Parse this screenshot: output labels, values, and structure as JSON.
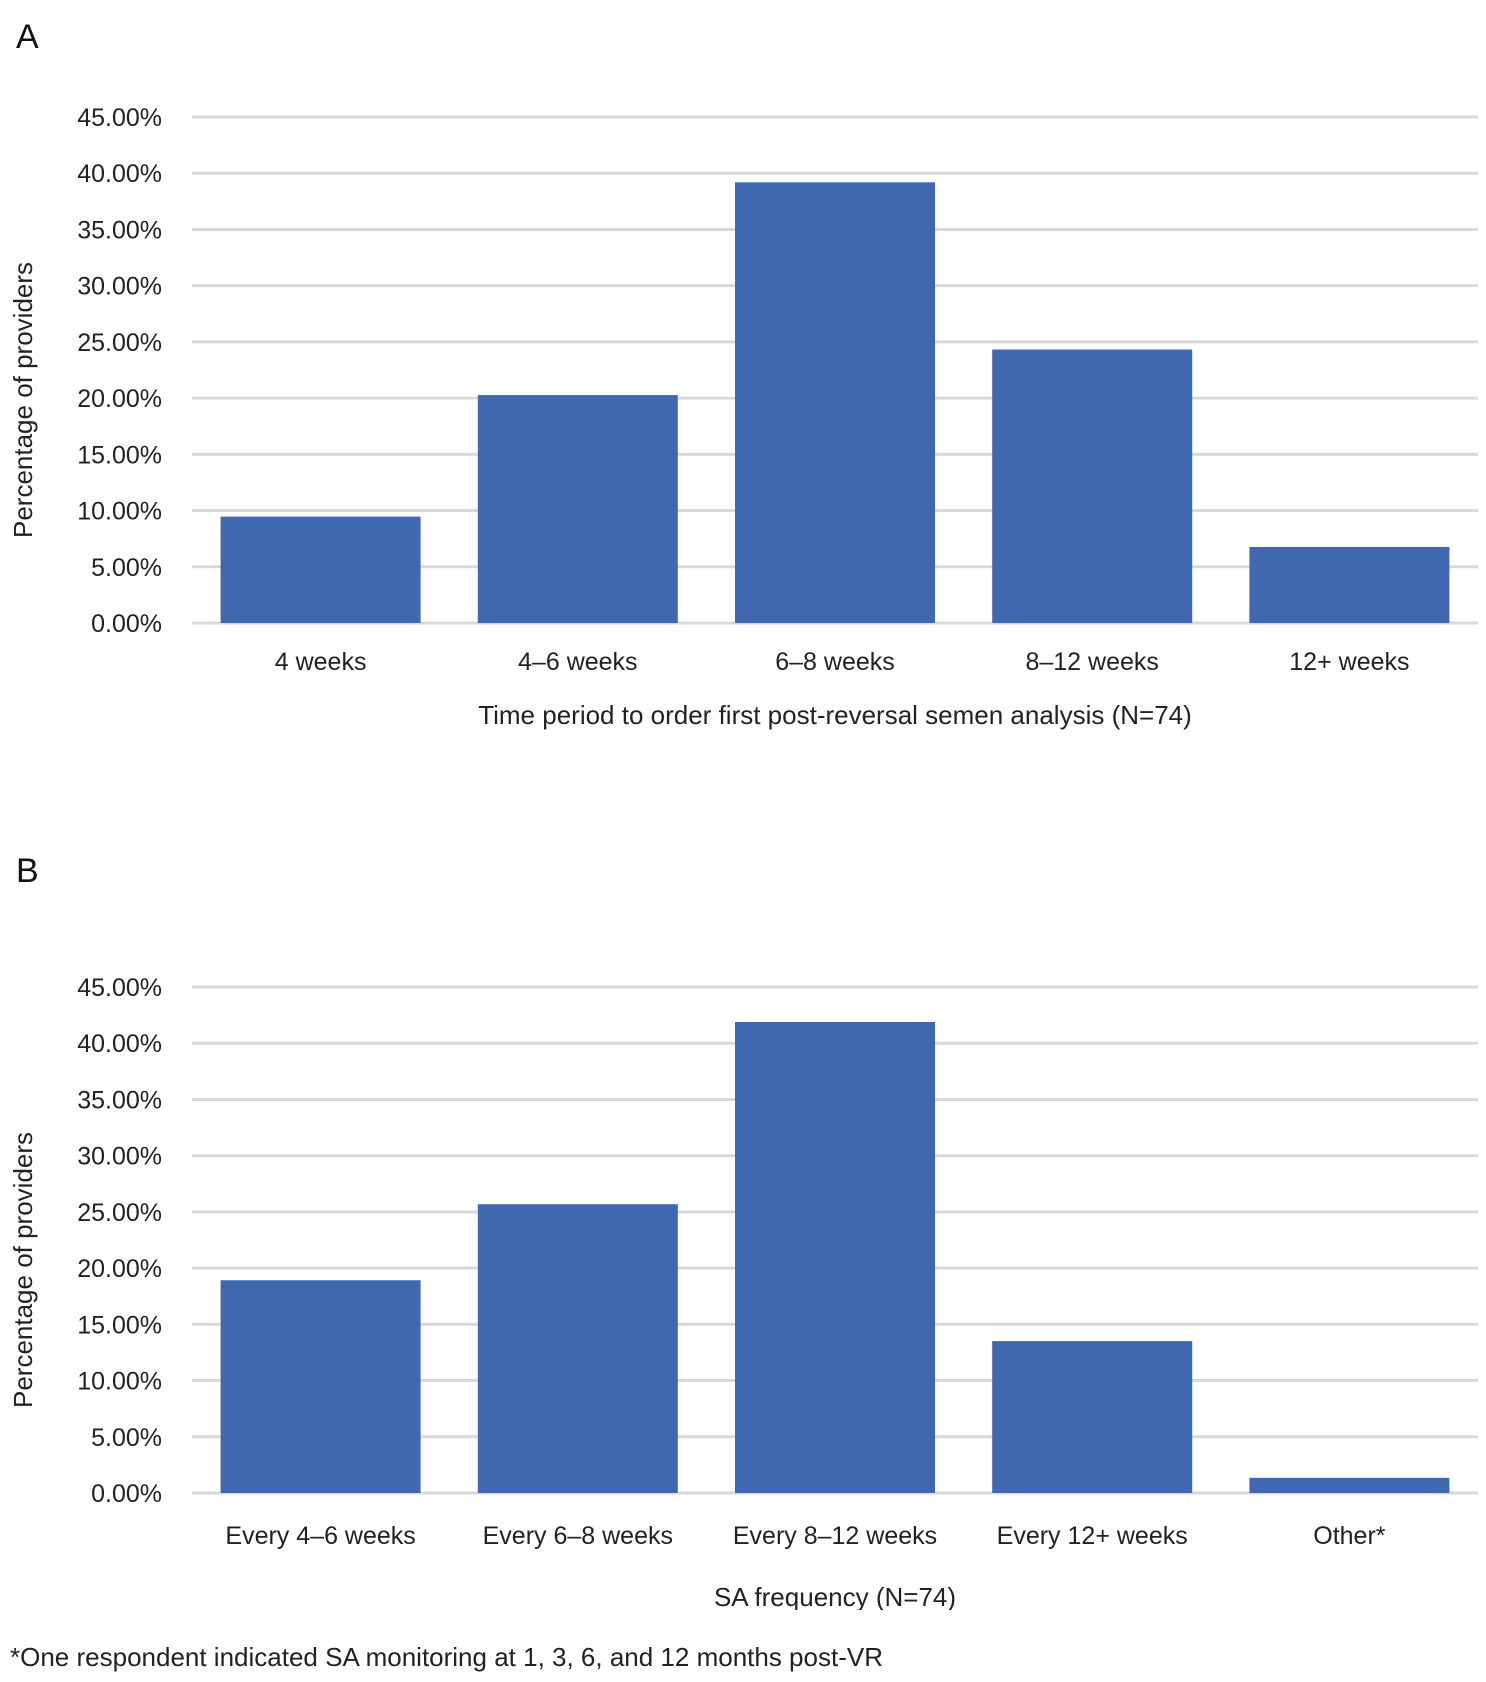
{
  "panels": {
    "a_label": "A",
    "b_label": "B"
  },
  "chart_data": [
    {
      "type": "bar",
      "panel": "A",
      "title": "",
      "xlabel": "Time period to order first post-reversal semen analysis (N=74)",
      "ylabel": "Percentage of providers",
      "categories": [
        "4 weeks",
        "4–6 weeks",
        "6–8 weeks",
        "8–12 weeks",
        "12+ weeks"
      ],
      "values": [
        9.46,
        20.27,
        39.19,
        24.32,
        6.76
      ],
      "ylim": [
        0,
        45
      ],
      "yticks": [
        "0.00%",
        "5.00%",
        "10.00%",
        "15.00%",
        "20.00%",
        "25.00%",
        "30.00%",
        "35.00%",
        "40.00%",
        "45.00%"
      ],
      "grid": true,
      "bar_color": "#3f68b0"
    },
    {
      "type": "bar",
      "panel": "B",
      "title": "",
      "xlabel": "SA frequency (N=74)",
      "ylabel": "Percentage of providers",
      "categories": [
        "Every 4–6 weeks",
        "Every 6–8 weeks",
        "Every 8–12 weeks",
        "Every 12+ weeks",
        "Other*"
      ],
      "values": [
        18.92,
        25.68,
        41.89,
        13.51,
        1.35
      ],
      "ylim": [
        0,
        45
      ],
      "yticks": [
        "0.00%",
        "5.00%",
        "10.00%",
        "15.00%",
        "20.00%",
        "25.00%",
        "30.00%",
        "35.00%",
        "40.00%",
        "45.00%"
      ],
      "grid": true,
      "bar_color": "#3f68b0"
    }
  ],
  "footnote": "*One respondent indicated SA monitoring at 1, 3, 6, and 12 months post-VR"
}
